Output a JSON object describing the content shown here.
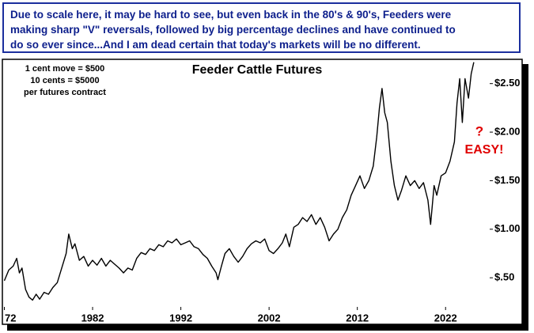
{
  "chart_data": {
    "type": "line",
    "note": [
      "Due to scale here, it may be hard to see, but even back in the 80's & 90's, Feeders were",
      "making sharp \"V\" reversals, followed by big percentage declines and have continued to",
      "do so ever since...And I am dead certain that today's markets will be no different."
    ],
    "title": "Feeder Cattle Futures",
    "annotations": [
      "1 cent move = $500",
      "10 cents = $5000",
      "per futures contract"
    ],
    "question": "?",
    "callout": "EASY!",
    "color": "#000000",
    "grid": false,
    "xlim": [
      1972,
      2027
    ],
    "xticks": [
      {
        "value": 1972,
        "label": "72"
      },
      1982,
      1992,
      2002,
      2012,
      2022
    ],
    "ylim": [
      0.2,
      2.75
    ],
    "yticks": [
      {
        "value": 0.5,
        "label": "$.50"
      },
      {
        "value": 1.0,
        "label": "$1.00"
      },
      {
        "value": 1.5,
        "label": "$1.50"
      },
      {
        "value": 2.0,
        "label": "$2.00"
      },
      {
        "value": 2.5,
        "label": "$2.50"
      }
    ],
    "x": [
      1972.0,
      1972.5,
      1973.0,
      1973.4,
      1973.7,
      1974.0,
      1974.4,
      1974.8,
      1975.2,
      1975.6,
      1976.0,
      1976.5,
      1977.0,
      1977.5,
      1978.0,
      1978.5,
      1979.0,
      1979.3,
      1979.7,
      1980.0,
      1980.5,
      1981.0,
      1981.5,
      1982.0,
      1982.5,
      1983.0,
      1983.5,
      1984.0,
      1984.5,
      1985.0,
      1985.5,
      1986.0,
      1986.5,
      1987.0,
      1987.5,
      1988.0,
      1988.5,
      1989.0,
      1989.5,
      1990.0,
      1990.5,
      1991.0,
      1991.5,
      1992.0,
      1992.5,
      1993.0,
      1993.5,
      1994.0,
      1994.5,
      1995.0,
      1995.5,
      1996.0,
      1996.2,
      1996.6,
      1997.0,
      1997.5,
      1998.0,
      1998.5,
      1999.0,
      1999.5,
      2000.0,
      2000.5,
      2001.0,
      2001.5,
      2002.0,
      2002.5,
      2003.0,
      2003.5,
      2003.9,
      2004.3,
      2004.8,
      2005.3,
      2005.8,
      2006.3,
      2006.8,
      2007.3,
      2007.8,
      2008.3,
      2008.8,
      2009.3,
      2009.8,
      2010.3,
      2010.8,
      2011.3,
      2011.8,
      2012.3,
      2012.8,
      2013.3,
      2013.8,
      2014.2,
      2014.5,
      2014.8,
      2015.1,
      2015.4,
      2015.8,
      2016.2,
      2016.6,
      2017.0,
      2017.5,
      2018.0,
      2018.5,
      2019.0,
      2019.5,
      2020.0,
      2020.3,
      2020.7,
      2021.0,
      2021.5,
      2022.0,
      2022.5,
      2023.0,
      2023.3,
      2023.6,
      2023.9,
      2024.2,
      2024.6,
      2024.9,
      2025.2
    ],
    "values": [
      0.47,
      0.58,
      0.62,
      0.7,
      0.55,
      0.6,
      0.38,
      0.3,
      0.27,
      0.33,
      0.28,
      0.35,
      0.33,
      0.4,
      0.45,
      0.6,
      0.75,
      0.95,
      0.8,
      0.85,
      0.68,
      0.72,
      0.62,
      0.68,
      0.63,
      0.7,
      0.62,
      0.68,
      0.64,
      0.6,
      0.55,
      0.6,
      0.58,
      0.7,
      0.76,
      0.74,
      0.8,
      0.78,
      0.84,
      0.82,
      0.88,
      0.86,
      0.9,
      0.84,
      0.86,
      0.88,
      0.82,
      0.8,
      0.74,
      0.7,
      0.62,
      0.55,
      0.48,
      0.62,
      0.75,
      0.8,
      0.72,
      0.66,
      0.72,
      0.8,
      0.85,
      0.88,
      0.86,
      0.9,
      0.78,
      0.75,
      0.8,
      0.86,
      0.95,
      0.82,
      1.02,
      1.05,
      1.12,
      1.08,
      1.15,
      1.05,
      1.12,
      1.02,
      0.88,
      0.95,
      1.0,
      1.12,
      1.2,
      1.35,
      1.45,
      1.55,
      1.42,
      1.5,
      1.65,
      1.95,
      2.25,
      2.45,
      2.2,
      2.1,
      1.7,
      1.45,
      1.3,
      1.4,
      1.55,
      1.45,
      1.5,
      1.42,
      1.48,
      1.3,
      1.05,
      1.45,
      1.35,
      1.55,
      1.58,
      1.7,
      1.9,
      2.3,
      2.55,
      2.1,
      2.55,
      2.35,
      2.6,
      2.72
    ]
  }
}
